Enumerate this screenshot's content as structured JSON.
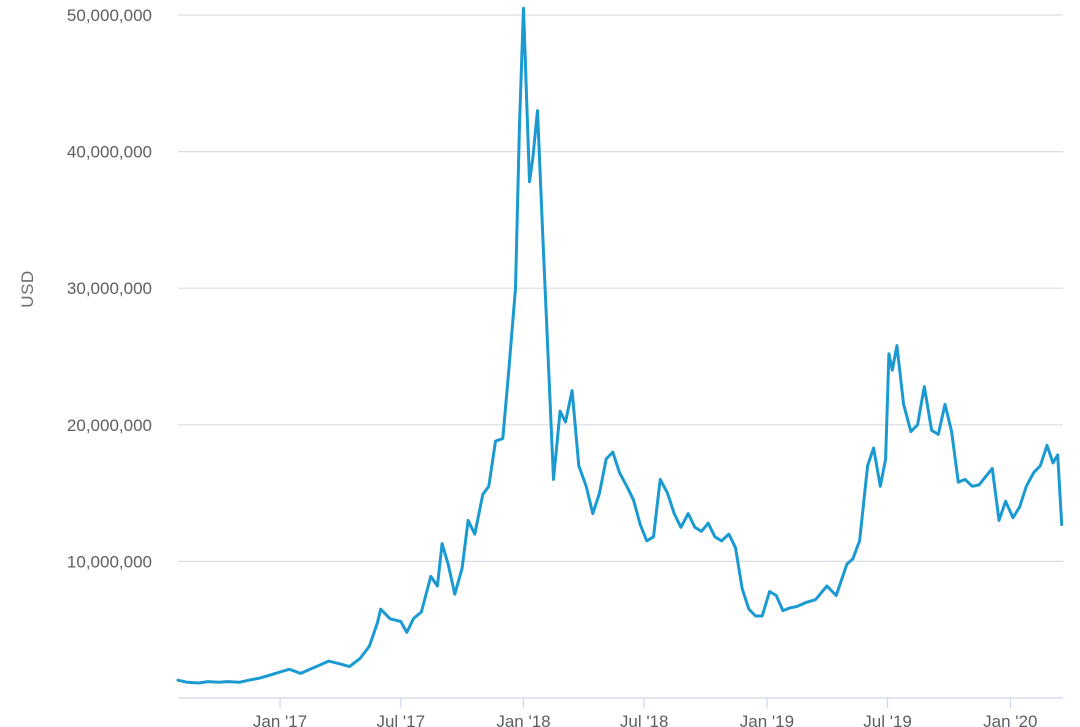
{
  "chart_data": {
    "type": "line",
    "title": "",
    "xlabel": "",
    "ylabel": "USD",
    "ylim": [
      0,
      50000000
    ],
    "yticks": [
      10000000,
      20000000,
      30000000,
      40000000,
      50000000
    ],
    "ytick_labels": [
      "10,000,000",
      "20,000,000",
      "30,000,000",
      "40,000,000",
      "50,000,000"
    ],
    "xlim": [
      "2016-08-01",
      "2020-03-20"
    ],
    "xticks": [
      "2017-01-01",
      "2017-07-01",
      "2018-01-01",
      "2018-07-01",
      "2019-01-01",
      "2019-07-01",
      "2020-01-01"
    ],
    "xtick_labels": [
      "Jan '17",
      "Jul '17",
      "Jan '18",
      "Jul '18",
      "Jan '19",
      "Jul '19",
      "Jan '20"
    ],
    "grid": true,
    "legend": false,
    "colors": {
      "line": "#1a9ad0",
      "grid": "#d9dde1",
      "text": "#5c5f63"
    },
    "series": [
      {
        "x": [
          "2016-08-01",
          "2016-08-15",
          "2016-09-01",
          "2016-09-15",
          "2016-10-01",
          "2016-10-15",
          "2016-11-01",
          "2016-11-15",
          "2016-12-01",
          "2016-12-15",
          "2017-01-01",
          "2017-01-15",
          "2017-02-01",
          "2017-02-15",
          "2017-03-01",
          "2017-03-15",
          "2017-04-01",
          "2017-04-15",
          "2017-05-01",
          "2017-05-15",
          "2017-05-27",
          "2017-06-01",
          "2017-06-15",
          "2017-07-01",
          "2017-07-10",
          "2017-07-20",
          "2017-08-01",
          "2017-08-15",
          "2017-08-25",
          "2017-09-01",
          "2017-09-10",
          "2017-09-20",
          "2017-10-01",
          "2017-10-10",
          "2017-10-20",
          "2017-11-01",
          "2017-11-10",
          "2017-11-20",
          "2017-12-01",
          "2017-12-10",
          "2017-12-20",
          "2017-12-26",
          "2018-01-01",
          "2018-01-07",
          "2018-01-10",
          "2018-01-15",
          "2018-01-22",
          "2018-01-30",
          "2018-02-06",
          "2018-02-15",
          "2018-02-25",
          "2018-03-05",
          "2018-03-15",
          "2018-03-25",
          "2018-04-05",
          "2018-04-15",
          "2018-04-25",
          "2018-05-05",
          "2018-05-15",
          "2018-05-25",
          "2018-06-05",
          "2018-06-15",
          "2018-06-25",
          "2018-07-05",
          "2018-07-15",
          "2018-07-25",
          "2018-08-05",
          "2018-08-15",
          "2018-08-25",
          "2018-09-05",
          "2018-09-15",
          "2018-09-25",
          "2018-10-05",
          "2018-10-15",
          "2018-10-25",
          "2018-11-05",
          "2018-11-15",
          "2018-11-25",
          "2018-12-05",
          "2018-12-15",
          "2018-12-25",
          "2019-01-05",
          "2019-01-15",
          "2019-01-25",
          "2019-02-05",
          "2019-02-15",
          "2019-03-01",
          "2019-03-15",
          "2019-04-01",
          "2019-04-15",
          "2019-05-01",
          "2019-05-10",
          "2019-05-20",
          "2019-06-01",
          "2019-06-10",
          "2019-06-20",
          "2019-06-28",
          "2019-07-03",
          "2019-07-08",
          "2019-07-15",
          "2019-07-25",
          "2019-08-05",
          "2019-08-15",
          "2019-08-25",
          "2019-09-05",
          "2019-09-15",
          "2019-09-25",
          "2019-10-05",
          "2019-10-15",
          "2019-10-25",
          "2019-11-05",
          "2019-11-15",
          "2019-11-25",
          "2019-12-05",
          "2019-12-15",
          "2019-12-25",
          "2020-01-05",
          "2020-01-15",
          "2020-01-25",
          "2020-02-05",
          "2020-02-15",
          "2020-02-25",
          "2020-03-05",
          "2020-03-12",
          "2020-03-18"
        ],
        "values": [
          1300000,
          1150000,
          1100000,
          1200000,
          1150000,
          1200000,
          1150000,
          1300000,
          1450000,
          1650000,
          1900000,
          2100000,
          1800000,
          2100000,
          2400000,
          2700000,
          2500000,
          2300000,
          2900000,
          3800000,
          5500000,
          6500000,
          5800000,
          5600000,
          4800000,
          5800000,
          6300000,
          8900000,
          8200000,
          11300000,
          9800000,
          7600000,
          9500000,
          13000000,
          12000000,
          14900000,
          15500000,
          18800000,
          19000000,
          24000000,
          30000000,
          42000000,
          50500000,
          42000000,
          37800000,
          39500000,
          43000000,
          33800000,
          26000000,
          16000000,
          21000000,
          20200000,
          22500000,
          17000000,
          15500000,
          13500000,
          15000000,
          17500000,
          18000000,
          16500000,
          15500000,
          14500000,
          12700000,
          11500000,
          11800000,
          16000000,
          15000000,
          13500000,
          12500000,
          13500000,
          12500000,
          12200000,
          12800000,
          11800000,
          11500000,
          12000000,
          11000000,
          8000000,
          6500000,
          6000000,
          6000000,
          7800000,
          7500000,
          6400000,
          6600000,
          6700000,
          7000000,
          7200000,
          8200000,
          7500000,
          9800000,
          10200000,
          11500000,
          17000000,
          18300000,
          15500000,
          17500000,
          25200000,
          24000000,
          25800000,
          21500000,
          19500000,
          20000000,
          22800000,
          19600000,
          19300000,
          21500000,
          19500000,
          15800000,
          16000000,
          15500000,
          15600000,
          16200000,
          16800000,
          13000000,
          14400000,
          13200000,
          14000000,
          15500000,
          16500000,
          17000000,
          18500000,
          17200000,
          17800000,
          12700000
        ]
      }
    ]
  }
}
